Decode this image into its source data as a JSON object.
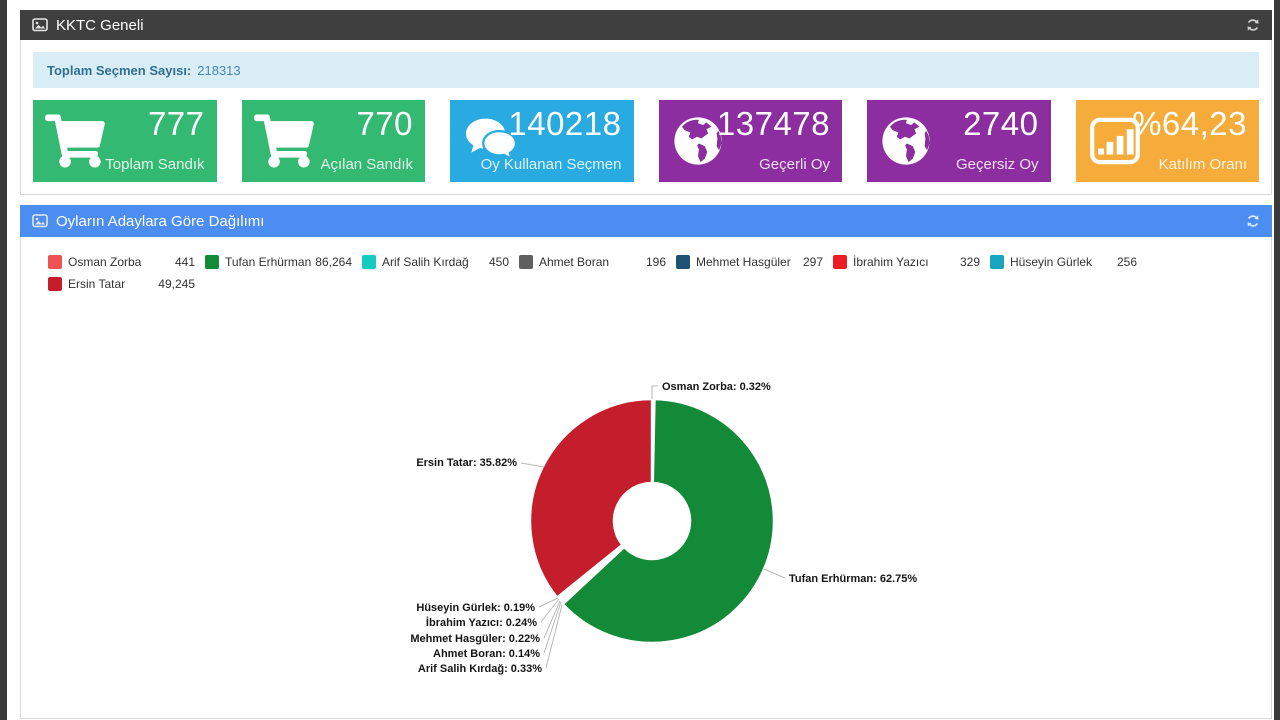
{
  "panel1": {
    "title": "KKTC Geneli",
    "info_label": "Toplam Seçmen Sayısı:",
    "info_value": "218313",
    "tiles": [
      {
        "value": "777",
        "label": "Toplam Sandık",
        "color": "#34b973",
        "icon": "cart-icon"
      },
      {
        "value": "770",
        "label": "Açılan Sandık",
        "color": "#34b973",
        "icon": "cart-icon"
      },
      {
        "value": "140218",
        "label": "Oy Kullanan Seçmen",
        "color": "#29abe2",
        "icon": "comments-icon"
      },
      {
        "value": "137478",
        "label": "Geçerli Oy",
        "color": "#8c2da0",
        "icon": "globe-icon"
      },
      {
        "value": "2740",
        "label": "Geçersiz Oy",
        "color": "#8c2da0",
        "icon": "globe-icon"
      },
      {
        "value": "%64,23",
        "label": "Katılım Oranı",
        "color": "#f5ac3b",
        "icon": "bar-chart-icon"
      }
    ]
  },
  "panel2": {
    "title": "Oyların Adaylara Göre Dağılımı"
  },
  "ui": {
    "header_icon": "image-icon",
    "refresh_icon": "refresh-icon",
    "panel1_header_color": "#3f3f3f",
    "panel2_header_color": "#4b8df0",
    "info_bar_color": "#d9edf7"
  },
  "chart_data": {
    "type": "pie",
    "donut": true,
    "title": "Oyların Adaylara Göre Dağılımı",
    "legend_position": "top",
    "label_format": "name: pct%",
    "slices": [
      {
        "name": "Osman Zorba",
        "votes": "441",
        "pct": 0.32,
        "color": "#ee5253"
      },
      {
        "name": "Tufan Erhürman",
        "votes": "86,264",
        "pct": 62.75,
        "color": "#128a38"
      },
      {
        "name": "Arif Salih Kırdağ",
        "votes": "450",
        "pct": 0.33,
        "color": "#15cbbf"
      },
      {
        "name": "Ahmet Boran",
        "votes": "196",
        "pct": 0.14,
        "color": "#606060"
      },
      {
        "name": "Mehmet Hasgüler",
        "votes": "297",
        "pct": 0.22,
        "color": "#1f5376"
      },
      {
        "name": "İbrahim Yazıcı",
        "votes": "329",
        "pct": 0.24,
        "color": "#ed1c24"
      },
      {
        "name": "Hüseyin Gürlek",
        "votes": "256",
        "pct": 0.19,
        "color": "#18a5bd"
      },
      {
        "name": "Ersin Tatar",
        "votes": "49,245",
        "pct": 35.82,
        "color": "#c41e2d"
      }
    ]
  }
}
